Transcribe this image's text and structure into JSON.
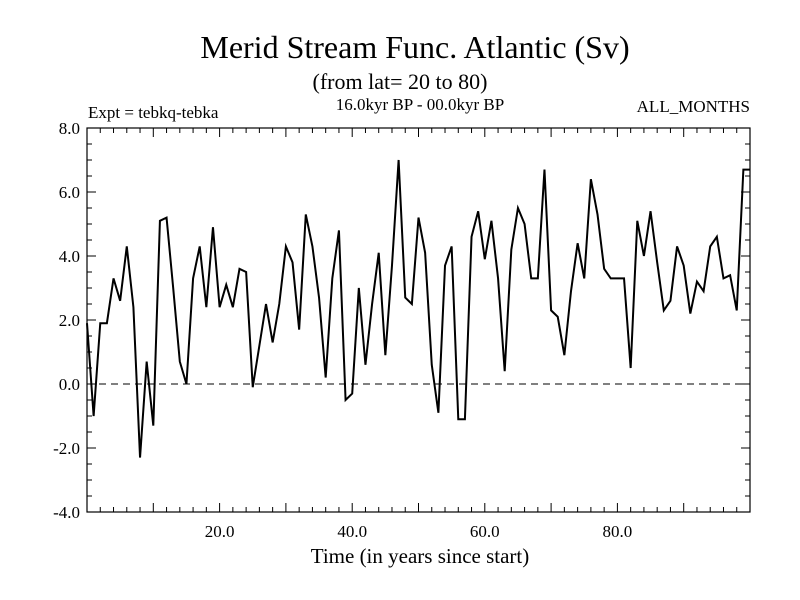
{
  "chart_data": {
    "type": "line",
    "title": "Merid Stream Func. Atlantic (Sv)",
    "subtitle": "(from lat= 20 to 80)",
    "period": "16.0kyr BP - 00.0kyr BP",
    "experiment": "Expt = tebkq-tebka",
    "months": "ALL_MONTHS",
    "xlabel": "Time (in years since start)",
    "ylabel": "",
    "xlim": [
      0,
      100
    ],
    "ylim": [
      -4.0,
      8.0
    ],
    "x_ticks": [
      20,
      40,
      60,
      80
    ],
    "x_tick_labels": [
      "20.0",
      "40.0",
      "60.0",
      "80.0"
    ],
    "y_ticks": [
      -4,
      -2,
      0,
      2,
      4,
      6,
      8
    ],
    "y_tick_labels": [
      "-4.0",
      "-2.0",
      "0.0",
      "2.0",
      "4.0",
      "6.0",
      "8.0"
    ],
    "reference_line": {
      "y": 0.0,
      "style": "dashed"
    },
    "grid": false,
    "series": [
      {
        "name": "Merid Stream Func. Atlantic",
        "x": [
          0,
          1,
          2,
          3,
          4,
          5,
          6,
          7,
          8,
          9,
          10,
          11,
          12,
          13,
          14,
          15,
          16,
          17,
          18,
          19,
          20,
          21,
          22,
          23,
          24,
          25,
          26,
          27,
          28,
          29,
          30,
          31,
          32,
          33,
          34,
          35,
          36,
          37,
          38,
          39,
          40,
          41,
          42,
          43,
          44,
          45,
          46,
          47,
          48,
          49,
          50,
          51,
          52,
          53,
          54,
          55,
          56,
          57,
          58,
          59,
          60,
          61,
          62,
          63,
          64,
          65,
          66,
          67,
          68,
          69,
          70,
          71,
          72,
          73,
          74,
          75,
          76,
          77,
          78,
          79,
          80,
          81,
          82,
          83,
          84,
          85,
          86,
          87,
          88,
          89,
          90,
          91,
          92,
          93,
          94,
          95,
          96,
          97,
          98,
          99,
          100
        ],
        "y": [
          1.9,
          -1.0,
          1.9,
          1.9,
          3.3,
          2.6,
          4.3,
          2.4,
          -2.3,
          0.7,
          -1.3,
          5.1,
          5.2,
          3.0,
          0.7,
          0.0,
          3.3,
          4.3,
          2.4,
          4.9,
          2.4,
          3.1,
          2.4,
          3.6,
          3.5,
          -0.1,
          1.2,
          2.5,
          1.3,
          2.5,
          4.3,
          3.8,
          1.7,
          5.3,
          4.3,
          2.7,
          0.2,
          3.3,
          4.8,
          -0.5,
          -0.3,
          3.0,
          0.6,
          2.5,
          4.1,
          0.9,
          3.7,
          7.0,
          2.7,
          2.5,
          5.2,
          4.1,
          0.6,
          -0.9,
          3.7,
          4.3,
          -1.1,
          -1.1,
          4.6,
          5.4,
          3.9,
          5.1,
          3.3,
          0.4,
          4.2,
          5.5,
          5.0,
          3.3,
          3.3,
          6.7,
          2.3,
          2.1,
          0.9,
          2.9,
          4.4,
          3.3,
          6.4,
          5.3,
          3.6,
          3.3,
          3.3,
          3.3,
          0.5,
          5.1,
          4.0,
          5.4,
          3.8,
          2.3,
          2.6,
          4.3,
          3.7,
          2.2,
          3.2,
          2.9,
          4.3,
          4.6,
          3.3,
          3.4,
          2.3,
          6.7,
          6.7
        ]
      }
    ]
  }
}
